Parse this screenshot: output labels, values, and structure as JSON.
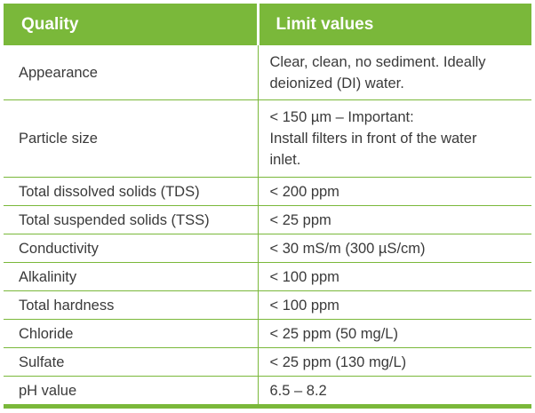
{
  "table": {
    "headers": {
      "quality": "Quality",
      "limit": "Limit values"
    },
    "rows": [
      {
        "quality": "Appearance",
        "limit_lines": [
          "Clear, clean, no sediment. Ideally",
          "deionized (DI) water."
        ]
      },
      {
        "quality": "Particle size",
        "limit_lines": [
          "< 150 µm – Important:",
          "Install filters in front of the water",
          "inlet."
        ]
      },
      {
        "quality": "Total dissolved solids (TDS)",
        "limit": "< 200 ppm"
      },
      {
        "quality": "Total suspended solids (TSS)",
        "limit": "< 25 ppm"
      },
      {
        "quality": "Conductivity",
        "limit": "< 30 mS/m (300 µS/cm)"
      },
      {
        "quality": "Alkalinity",
        "limit": "< 100 ppm"
      },
      {
        "quality": "Total hardness",
        "limit": "< 100 ppm"
      },
      {
        "quality": "Chloride",
        "limit": "< 25 ppm (50 mg/L)"
      },
      {
        "quality": "Sulfate",
        "limit": "< 25 ppm (130 mg/L)"
      },
      {
        "quality": "pH value",
        "limit": "6.5 – 8.2"
      }
    ]
  },
  "colors": {
    "header_bg": "#7ab83a",
    "header_text": "#ffffff",
    "body_text": "#3a3a3a",
    "rule": "#7ab83a"
  }
}
